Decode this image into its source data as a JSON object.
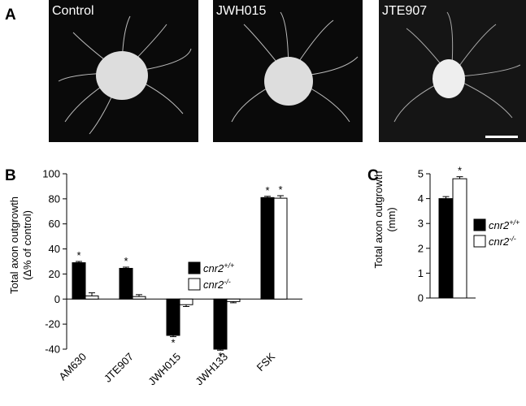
{
  "panel_labels": [
    "A",
    "B",
    "C"
  ],
  "images": [
    {
      "label": "Control"
    },
    {
      "label": "JWH015"
    },
    {
      "label": "JTE907"
    }
  ],
  "chart_data": [
    {
      "type": "bar",
      "ylabel": [
        "Total axon outgrowth",
        "(Δ% of control)"
      ],
      "categories": [
        "AM630",
        "JTE907",
        "JWH015",
        "JWH133",
        "FSK"
      ],
      "series": [
        {
          "name": "cnr2",
          "name_sup": "+/+",
          "color": "#000000",
          "values": [
            29,
            24.5,
            -29,
            -40,
            81
          ],
          "errors": [
            1,
            1,
            1,
            0.8,
            1
          ],
          "annotations": [
            "*",
            "*",
            "*",
            "*",
            "*"
          ]
        },
        {
          "name": "cnr2",
          "name_sup": "-/-",
          "color": "#ffffff",
          "values": [
            2.5,
            2,
            -4.5,
            -2,
            80.5
          ],
          "errors": [
            2.5,
            1.5,
            1.5,
            1,
            2
          ],
          "annotations": [
            null,
            null,
            null,
            null,
            "*"
          ]
        }
      ],
      "ylim": [
        -40,
        100
      ],
      "yticks": [
        -40,
        -20,
        0,
        20,
        40,
        60,
        80,
        100
      ]
    },
    {
      "type": "bar",
      "ylabel": [
        "Total axon outgrowth",
        "(mm)"
      ],
      "categories": [
        null
      ],
      "series": [
        {
          "name": "cnr2",
          "name_sup": "+/+",
          "color": "#000000",
          "values": [
            4.0
          ],
          "errors": [
            0.08
          ],
          "annotations": [
            null
          ]
        },
        {
          "name": "cnr2",
          "name_sup": "-/-",
          "color": "#ffffff",
          "values": [
            4.8
          ],
          "errors": [
            0.08
          ],
          "annotations": [
            "*"
          ]
        }
      ],
      "ylim": [
        0,
        5
      ],
      "yticks": [
        0,
        1,
        2,
        3,
        4,
        5
      ]
    }
  ]
}
